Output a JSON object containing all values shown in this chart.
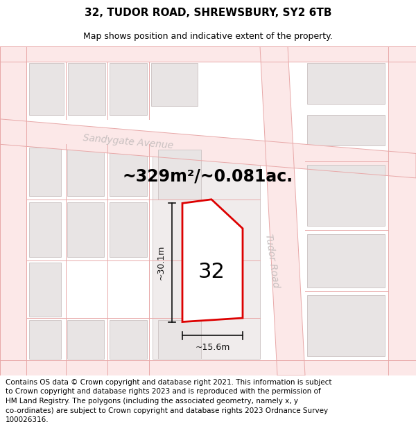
{
  "title_line1": "32, TUDOR ROAD, SHREWSBURY, SY2 6TB",
  "title_line2": "Map shows position and indicative extent of the property.",
  "footer_text": "Contains OS data © Crown copyright and database right 2021. This information is subject\nto Crown copyright and database rights 2023 and is reproduced with the permission of\nHM Land Registry. The polygons (including the associated geometry, namely x, y\nco-ordinates) are subject to Crown copyright and database rights 2023 Ordnance Survey\n100026316.",
  "area_text": "~329m²/~0.081ac.",
  "number_label": "32",
  "width_label": "~15.6m",
  "height_label": "~30.1m",
  "map_bg": "#f8f4f4",
  "road_fill": "#fce8e8",
  "road_edge": "#e8a8a8",
  "block_fill": "#e8e4e4",
  "block_edge": "#d0c8c8",
  "plot_block_fill": "#f0ecec",
  "plot_fill": "#ffffff",
  "plot_edge": "#dd0000",
  "street_color": "#c8c0c0",
  "dim_color": "#111111",
  "title_fs": 11,
  "subtitle_fs": 9,
  "area_fs": 17,
  "num_fs": 22,
  "dim_fs": 9,
  "street_fs": 10,
  "footer_fs": 7.5
}
